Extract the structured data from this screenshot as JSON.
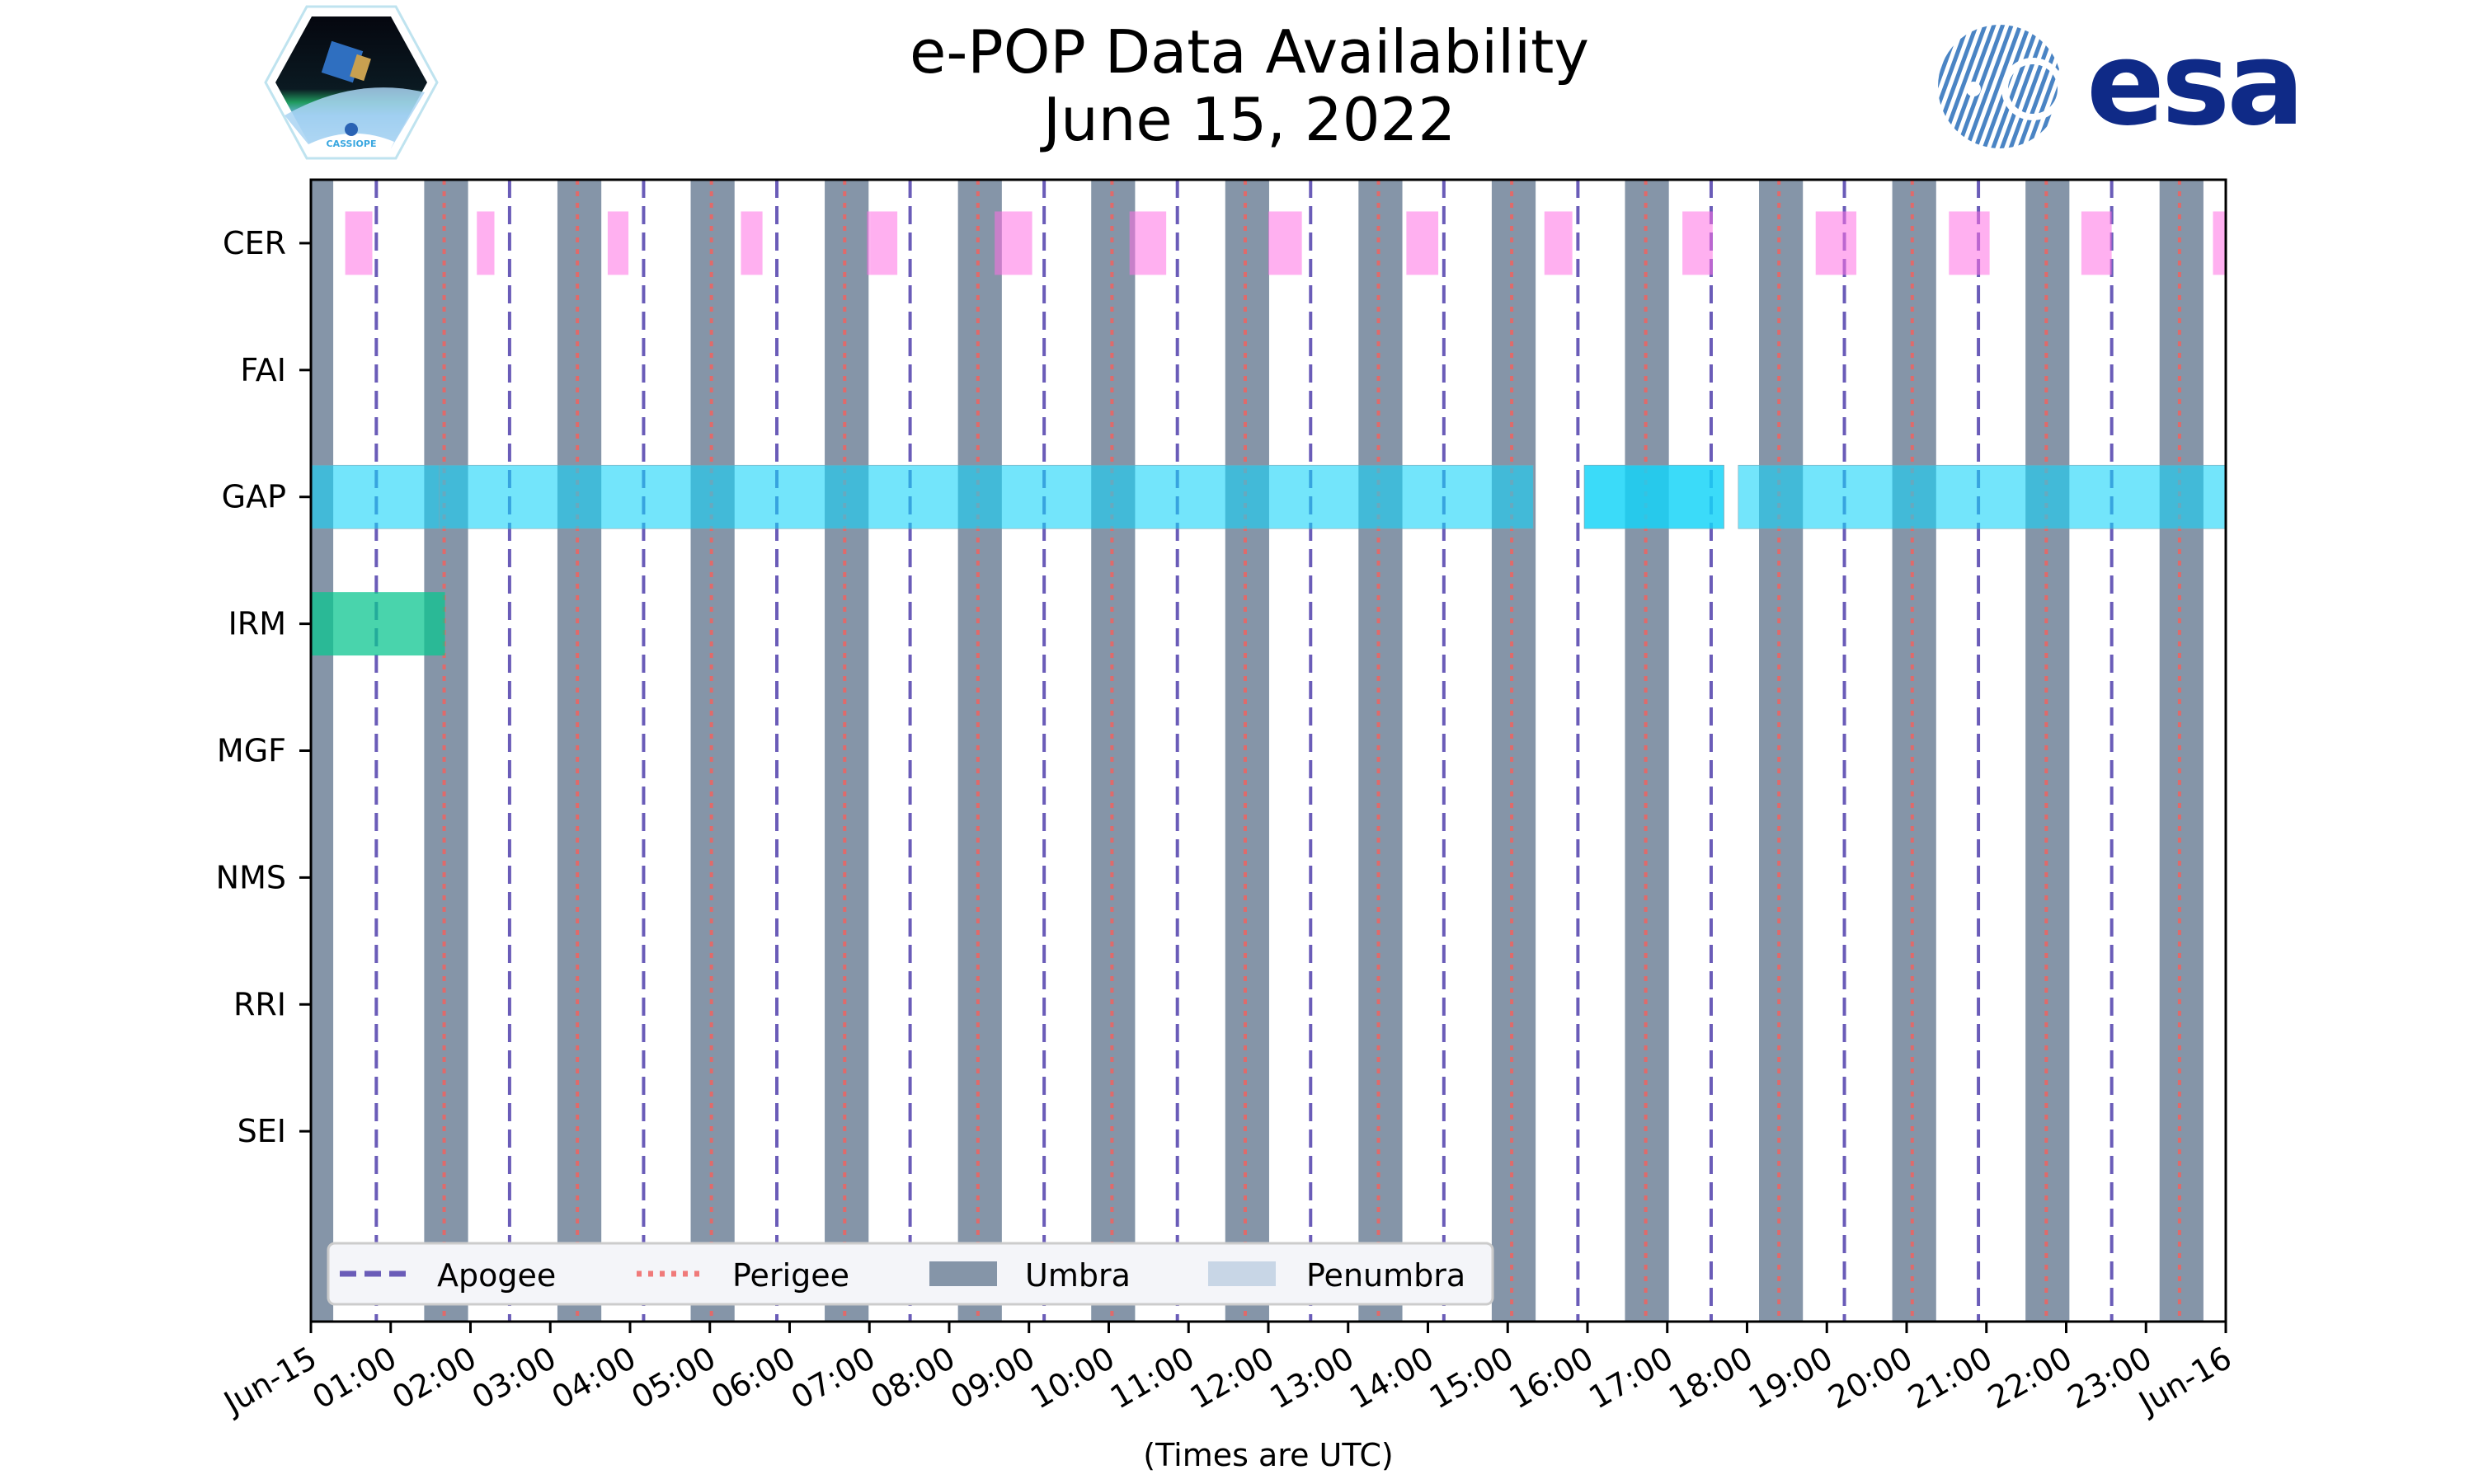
{
  "logos": {
    "left": {
      "name": "CASSIOPE mission patch",
      "text": "CASSIOPE"
    },
    "right": {
      "name": "ESA logo",
      "text": "esa"
    }
  },
  "colors": {
    "umbra": "#8595a8",
    "penumbra": "#c8d6e6",
    "apogee": "#6a5cb8",
    "perigee": "#e06a6a",
    "CER": "#ff6fe4",
    "GAP": "#16d4f8",
    "IRM": "#0cc690"
  },
  "chart_data": {
    "type": "timeline",
    "title": "e-POP Data Availability",
    "subtitle": "June 15, 2022",
    "xlabel": "(Times are UTC)",
    "xlim_hours": [
      0,
      24
    ],
    "x_ticks": [
      "Jun-15",
      "01:00",
      "02:00",
      "03:00",
      "04:00",
      "05:00",
      "06:00",
      "07:00",
      "08:00",
      "09:00",
      "10:00",
      "11:00",
      "12:00",
      "13:00",
      "14:00",
      "15:00",
      "16:00",
      "17:00",
      "18:00",
      "19:00",
      "20:00",
      "21:00",
      "22:00",
      "23:00",
      "Jun-16"
    ],
    "instruments": [
      "CER",
      "FAI",
      "GAP",
      "IRM",
      "MGF",
      "NMS",
      "RRI",
      "SEI"
    ],
    "availability_hours": {
      "CER": [
        [
          0.43,
          0.77
        ],
        [
          2.08,
          2.3
        ],
        [
          3.72,
          3.98
        ],
        [
          5.39,
          5.66
        ],
        [
          6.97,
          7.01
        ],
        [
          7.01,
          7.35
        ],
        [
          8.57,
          9.04
        ],
        [
          10.26,
          10.72
        ],
        [
          12.0,
          12.42
        ],
        [
          13.73,
          14.13
        ],
        [
          15.46,
          15.81
        ],
        [
          17.19,
          17.57
        ],
        [
          18.86,
          19.37
        ],
        [
          20.53,
          21.04
        ],
        [
          22.19,
          22.57
        ],
        [
          23.84,
          24.0
        ]
      ],
      "FAI": [],
      "GAP": [
        [
          0,
          1.61
        ],
        [
          1.61,
          15.32
        ],
        [
          15.96,
          17.71
        ],
        [
          15.96,
          17.71
        ],
        [
          17.89,
          24.0
        ]
      ],
      "IRM": [
        [
          0,
          1.68
        ]
      ],
      "MGF": [],
      "NMS": [],
      "RRI": [],
      "SEI": []
    },
    "umbra_hours": [
      [
        0,
        0.28
      ],
      [
        1.42,
        1.97
      ],
      [
        3.09,
        3.64
      ],
      [
        4.76,
        5.31
      ],
      [
        6.44,
        6.99
      ],
      [
        8.11,
        8.66
      ],
      [
        9.78,
        10.33
      ],
      [
        11.46,
        12.01
      ],
      [
        13.13,
        13.68
      ],
      [
        14.8,
        15.35
      ],
      [
        16.47,
        17.02
      ],
      [
        18.15,
        18.7
      ],
      [
        19.82,
        20.37
      ],
      [
        21.49,
        22.04
      ],
      [
        23.17,
        23.72
      ]
    ],
    "penumbra_hours": [],
    "apogee_hours": [
      0.82,
      2.49,
      4.17,
      5.84,
      7.51,
      9.19,
      10.86,
      12.53,
      14.2,
      15.88,
      17.55,
      19.22,
      20.9,
      22.57
    ],
    "perigee_hours": [
      1.67,
      3.34,
      5.02,
      6.69,
      8.36,
      10.04,
      11.71,
      13.38,
      15.05,
      16.73,
      18.4,
      20.07,
      21.75,
      23.42
    ],
    "legend": {
      "position": "lower-left",
      "entries": [
        "Apogee",
        "Perigee",
        "Umbra",
        "Penumbra"
      ]
    },
    "grid": false
  }
}
